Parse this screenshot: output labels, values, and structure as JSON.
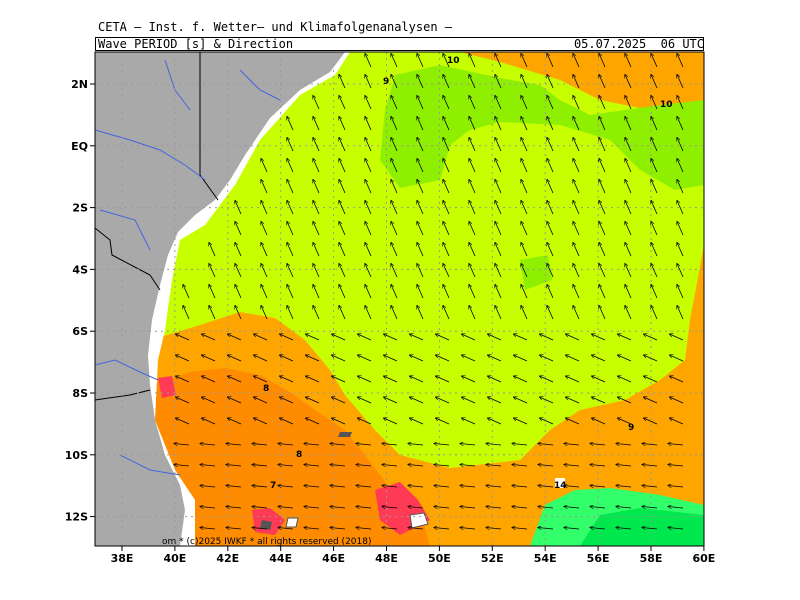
{
  "header": {
    "institute": "CETA – Inst. f. Wetter– und Klimafolgenanalysen –",
    "variable": "Wave_PERIOD_[s]_&_Direction",
    "valid_time": "05.07.2025  06 UTC"
  },
  "axes": {
    "x_ticks": [
      "38E",
      "40E",
      "42E",
      "44E",
      "46E",
      "48E",
      "50E",
      "52E",
      "54E",
      "56E",
      "58E",
      "60E"
    ],
    "y_ticks": [
      "2N",
      "EQ",
      "2S",
      "4S",
      "6S",
      "8S",
      "10S",
      "12S"
    ]
  },
  "contour_labels": [
    "10",
    "9",
    "10",
    "8",
    "8",
    "7",
    "9",
    "14"
  ],
  "copyright": "om * (c)2025 IWKF * all rights reserved (2018)",
  "legend_colors": {
    "land": "#a9a9a9",
    "coast": "#ffffff",
    "period_7": "#ff8c00",
    "period_8": "#ffa500",
    "period_9": "#c8ff00",
    "period_10": "#8ef000",
    "period_12": "#32ff6a",
    "period_14": "#00e84d",
    "period_6": "#ff3a55",
    "rivers": "#4466dd"
  }
}
